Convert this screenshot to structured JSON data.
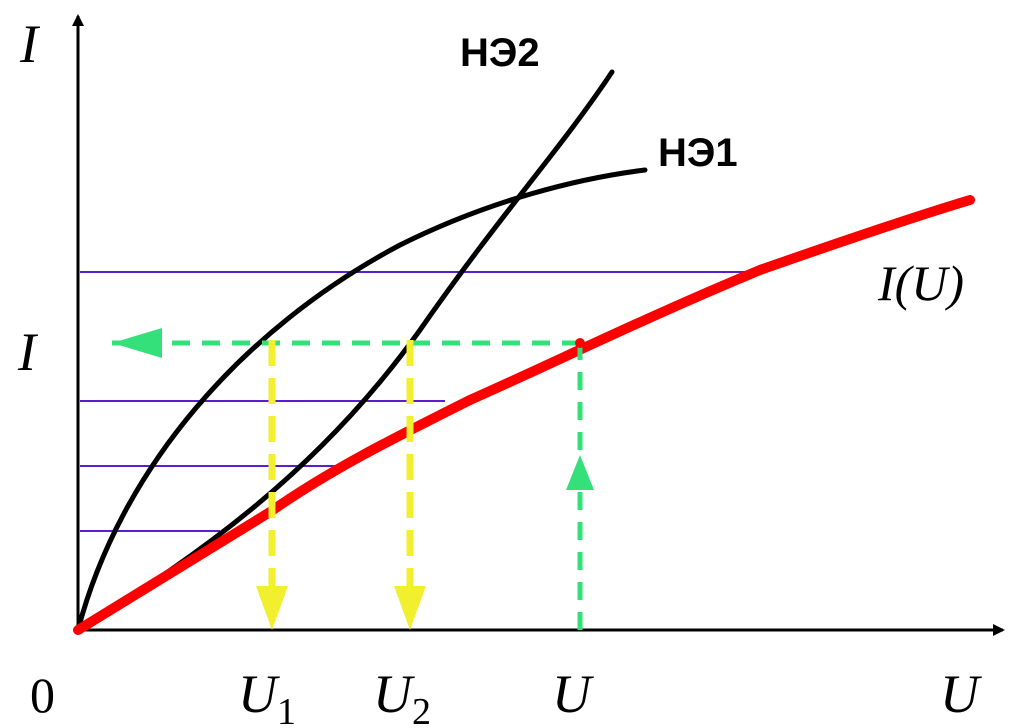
{
  "labels": {
    "y_axis": "I",
    "x_axis": "U",
    "origin": "0",
    "level_i": "I",
    "u_letter": "U",
    "u1_sub": "1",
    "u2_sub": "2",
    "u_total": "U",
    "curve_ne1": "НЭ1",
    "curve_ne2": "НЭ2",
    "curve_iu": "I(U)"
  },
  "colors": {
    "axes": "#000000",
    "element_curves": "#000000",
    "sum_curve": "#ff0000",
    "construction_lines": "#5a1fcc",
    "current_projection": "#33e07a",
    "voltage_drops": "#f2ef2e"
  }
}
